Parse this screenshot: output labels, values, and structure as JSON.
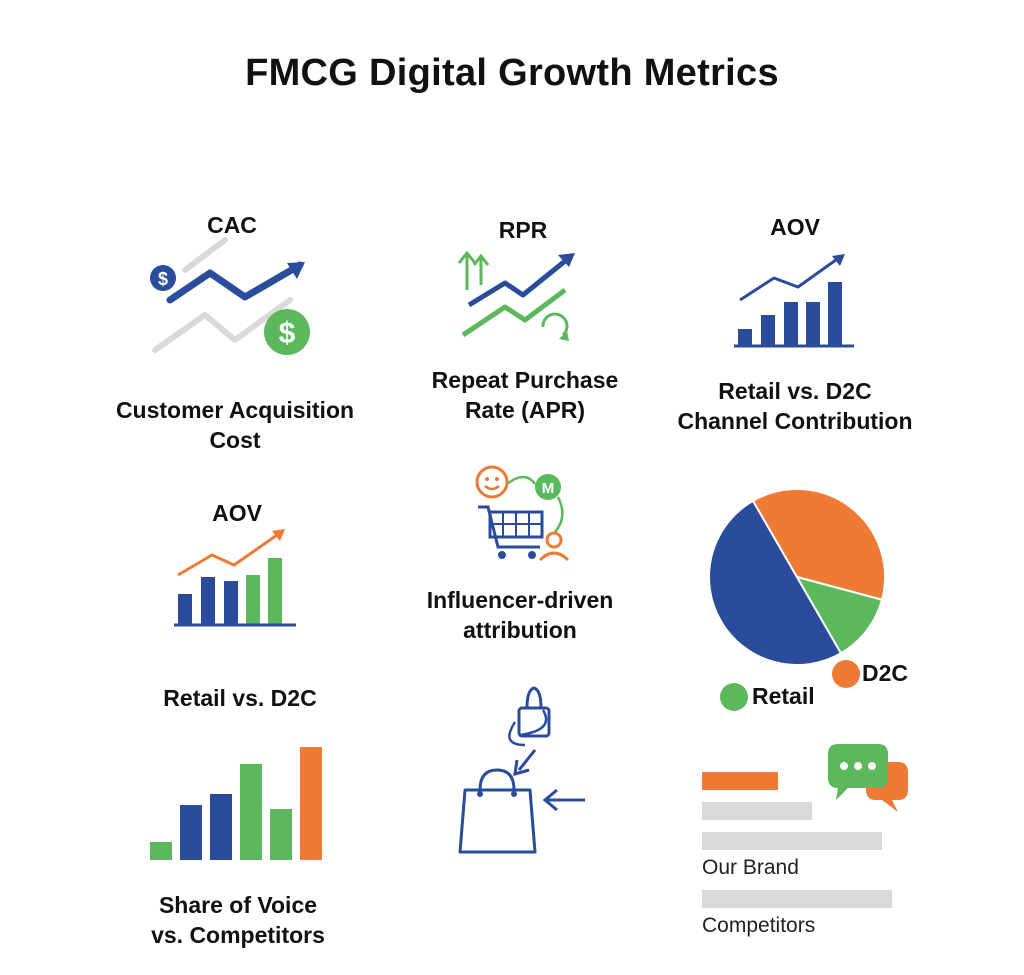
{
  "title": "FMCG Digital Growth Metrics",
  "colors": {
    "blue": "#2b4c9b",
    "green": "#5cb85c",
    "orange": "#ef7a35",
    "gray": "#d9d9d9"
  },
  "tiles": {
    "cac": {
      "heading": "CAC",
      "caption_1": "Customer Acquisition",
      "caption_2": "Cost",
      "icon": "trend-dollar-icon",
      "coin_symbol": "$"
    },
    "rpr": {
      "heading": "RPR",
      "caption_1": "Repeat Purchase",
      "caption_2": "Rate (APR)",
      "icon": "repeat-trend-icon"
    },
    "aov_top": {
      "heading": "AOV",
      "caption_1": "Retail vs. D2C",
      "caption_2": "Channel Contribution",
      "icon": "bar-trend-icon"
    },
    "aov_mid": {
      "heading": "AOV",
      "icon": "bar-trend-icon"
    },
    "influencer": {
      "caption_1": "Influencer-driven",
      "caption_2": "attribution",
      "icon": "cart-influencer-icon",
      "badge_letter": "M"
    },
    "retail_d2c": {
      "heading": "Retail vs. D2C",
      "icon": "bar-chart-icon"
    },
    "sov": {
      "caption_1": "Share of Voice",
      "caption_2": "vs. Competitors",
      "icon": "shopping-bag-icon"
    },
    "voice": {
      "our_brand": "Our Brand",
      "competitors": "Competitors",
      "icon": "chat-bubbles-icon"
    },
    "pie": {
      "legend_d2c": "D2C",
      "legend_retail": "Retail"
    }
  },
  "chart_data": {
    "type": "pie",
    "categories": [
      "Retail (blue)",
      "D2C",
      "Retail"
    ],
    "values": [
      50,
      37.5,
      12.5
    ],
    "colors": [
      "#2b4c9b",
      "#ef7a35",
      "#5cb85c"
    ]
  }
}
